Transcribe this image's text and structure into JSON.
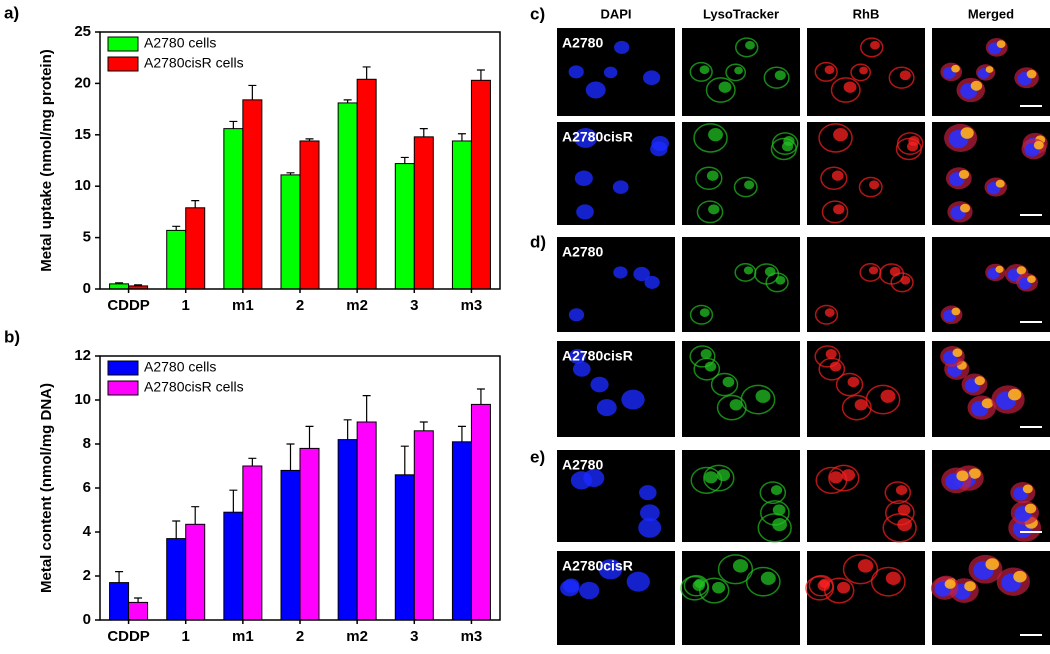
{
  "chart_data": [
    {
      "type": "bar",
      "panel_label": "a)",
      "y_label": "Metal uptake (nmol/mg protein)",
      "categories": [
        "CDDP",
        "1",
        "m1",
        "2",
        "m2",
        "3",
        "m3"
      ],
      "series": [
        {
          "name": "A2780 cells",
          "color": "#00ff00",
          "values": [
            0.5,
            5.7,
            15.6,
            11.1,
            18.1,
            12.2,
            14.4
          ],
          "errors": [
            0.1,
            0.4,
            0.7,
            0.2,
            0.3,
            0.6,
            0.7
          ]
        },
        {
          "name": "A2780cisR cells",
          "color": "#ff0000",
          "values": [
            0.3,
            7.9,
            18.4,
            14.4,
            20.4,
            14.8,
            20.3
          ],
          "errors": [
            0.1,
            0.7,
            1.4,
            0.2,
            1.2,
            0.8,
            1.0
          ]
        }
      ],
      "ylim": [
        0,
        25
      ],
      "yticks": [
        0,
        5,
        10,
        15,
        20,
        25
      ],
      "legend": "upper left"
    },
    {
      "type": "bar",
      "panel_label": "b)",
      "y_label": "Metal content (nmol/mg DNA)",
      "categories": [
        "CDDP",
        "1",
        "m1",
        "2",
        "m2",
        "3",
        "m3"
      ],
      "series": [
        {
          "name": "A2780 cells",
          "color": "#0000ff",
          "values": [
            1.7,
            3.7,
            4.9,
            6.8,
            8.2,
            6.6,
            8.1
          ],
          "errors": [
            0.5,
            0.8,
            1.0,
            1.2,
            0.9,
            1.3,
            0.7
          ]
        },
        {
          "name": "A2780cisR cells",
          "color": "#ff00ff",
          "values": [
            0.8,
            4.35,
            7.0,
            7.8,
            9.0,
            8.6,
            9.8
          ],
          "errors": [
            0.2,
            0.8,
            0.35,
            1.0,
            1.2,
            0.4,
            0.7
          ]
        }
      ],
      "ylim": [
        0,
        12
      ],
      "yticks": [
        0,
        2,
        4,
        6,
        8,
        10,
        12
      ],
      "legend": "upper left"
    }
  ],
  "images": {
    "columns": [
      "DAPI",
      "LysoTracker",
      "RhB",
      "Merged"
    ],
    "groups": [
      {
        "label": "c)",
        "rows": [
          "A2780",
          "A2780cisR"
        ]
      },
      {
        "label": "d)",
        "rows": [
          "A2780",
          "A2780cisR"
        ]
      },
      {
        "label": "e)",
        "rows": [
          "A2780",
          "A2780cisR"
        ]
      }
    ]
  }
}
